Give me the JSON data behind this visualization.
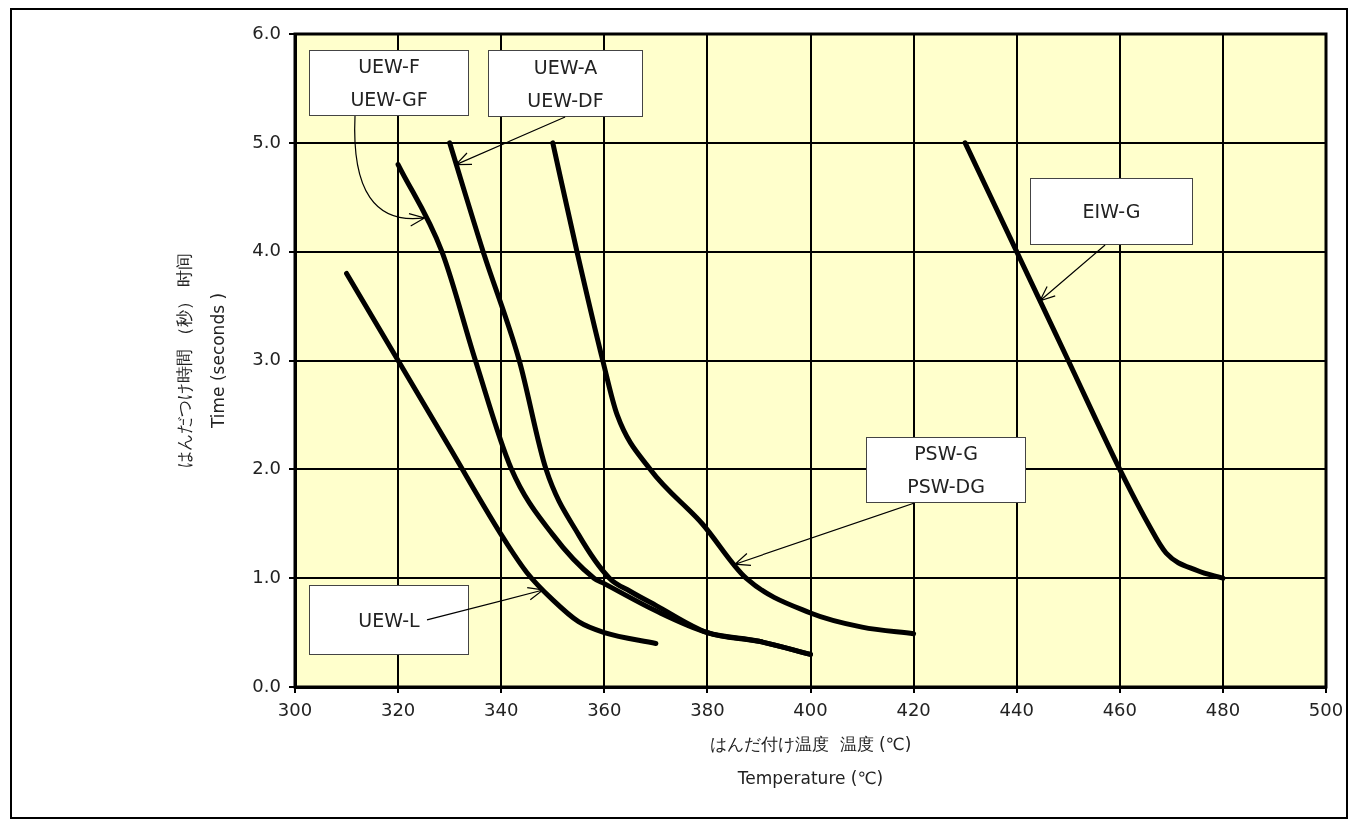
{
  "chart_data": {
    "type": "line",
    "xlabel": "はんだ付け温度  温度 (℃)\nTemperature (℃)",
    "ylabel": "はんだつけ時間 （秒） 时间\nTime (seconds )",
    "xlim": [
      300,
      500
    ],
    "xticks": [
      300,
      320,
      340,
      360,
      380,
      400,
      420,
      440,
      460,
      480,
      500
    ],
    "ylim": [
      0,
      6
    ],
    "yticks": [
      {
        "value": 0,
        "label": "0.0"
      },
      {
        "value": 1,
        "label": "1.0"
      },
      {
        "value": 2,
        "label": "2.0"
      },
      {
        "value": 3,
        "label": "3.0"
      },
      {
        "value": 4,
        "label": "4.0"
      },
      {
        "value": 5,
        "label": "5.0"
      },
      {
        "value": 6,
        "label": "6.0"
      }
    ],
    "grid": true,
    "legend": false,
    "annotations": [
      {
        "text": "UEW-L",
        "x": 348.2,
        "y": 0.89
      },
      {
        "text": "UEW-F\nUEW-GF",
        "x": 325.2,
        "y": 4.31
      },
      {
        "text": "UEW-A\nUEW-DF",
        "x": 331.3,
        "y": 4.8
      },
      {
        "text": "PSW-G\nPSW-DG",
        "x": 385.3,
        "y": 1.13
      },
      {
        "text": "EIW-G",
        "x": 444.5,
        "y": 3.55
      }
    ],
    "series": [
      {
        "color": "#000000",
        "x": [
          310,
          320,
          330,
          340,
          345,
          350,
          355,
          360,
          370
        ],
        "values": [
          3.8,
          3.0,
          2.2,
          1.4,
          1.05,
          0.8,
          0.6,
          0.5,
          0.4
        ]
      },
      {
        "color": "#000000",
        "x": [
          320,
          328.5,
          335,
          342,
          350,
          358,
          360,
          370,
          380,
          390,
          400
        ],
        "values": [
          4.8,
          4.0,
          3.0,
          2.0,
          1.4,
          1.0,
          0.95,
          0.7,
          0.5,
          0.42,
          0.3
        ]
      },
      {
        "color": "#000000",
        "x": [
          330,
          336.5,
          343.5,
          348.7,
          355,
          361,
          365,
          370,
          380,
          390,
          400
        ],
        "values": [
          5.0,
          4.0,
          3.0,
          2.0,
          1.4,
          1.0,
          0.88,
          0.75,
          0.5,
          0.42,
          0.3
        ]
      },
      {
        "color": "#000000",
        "x": [
          350,
          354.7,
          359.7,
          362.5,
          368.9,
          379,
          387.5,
          400,
          410,
          420
        ],
        "values": [
          5.0,
          4.0,
          3.0,
          2.5,
          2.0,
          1.5,
          1.0,
          0.68,
          0.55,
          0.49
        ]
      },
      {
        "color": "#000000",
        "x": [
          430,
          440,
          450,
          460,
          465.5,
          469,
          475,
          480
        ],
        "values": [
          5.0,
          4.0,
          3.0,
          2.0,
          1.5,
          1.23,
          1.07,
          1.0
        ]
      }
    ]
  }
}
